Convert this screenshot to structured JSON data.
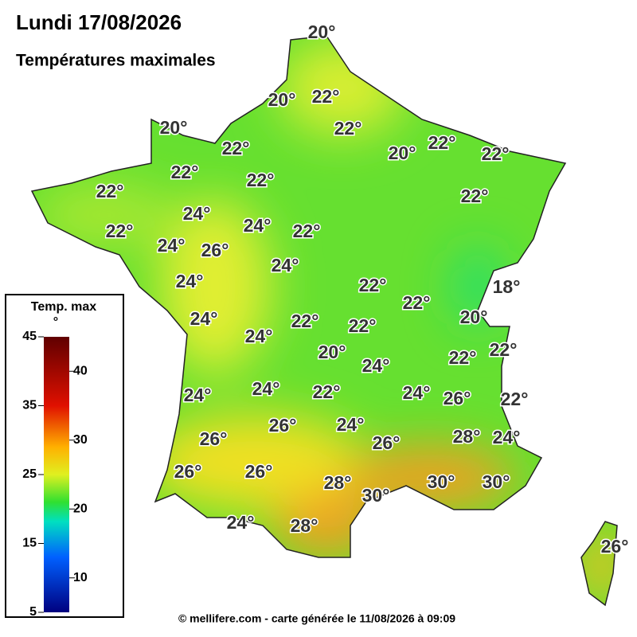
{
  "header": {
    "title": "Lundi 17/08/2026",
    "subtitle": "Températures maximales"
  },
  "legend": {
    "title": "Temp. max",
    "unit": "°",
    "range": [
      5,
      45
    ],
    "left_ticks": [
      5,
      15,
      25,
      35,
      45
    ],
    "right_ticks": [
      10,
      20,
      30,
      40
    ]
  },
  "map_labels": [
    "20°",
    "20°",
    "22°",
    "20°",
    "22°",
    "22°",
    "20°",
    "22°",
    "22°",
    "22°",
    "22°",
    "22°",
    "22°",
    "24°",
    "22°",
    "24°",
    "22°",
    "24°",
    "26°",
    "24°",
    "24°",
    "22°",
    "18°",
    "22°",
    "24°",
    "20°",
    "22°",
    "22°",
    "24°",
    "22°",
    "20°",
    "22°",
    "24°",
    "24°",
    "22°",
    "24°",
    "24°",
    "26°",
    "22°",
    "26°",
    "24°",
    "26°",
    "26°",
    "28°",
    "24°",
    "26°",
    "26°",
    "30°",
    "30°",
    "28°",
    "30°",
    "24°",
    "28°",
    "26°"
  ],
  "footer": "© mellifere.com - carte générée le 11/08/2026 à 09:09"
}
